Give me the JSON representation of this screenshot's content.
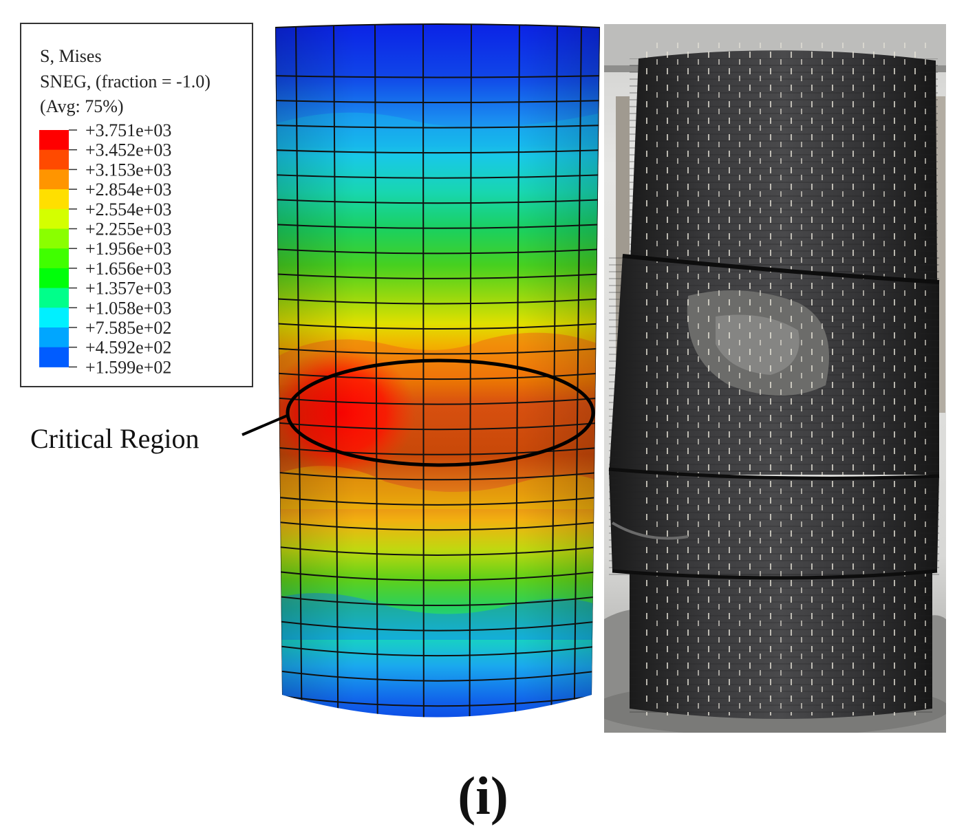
{
  "legend": {
    "title_lines": [
      "S, Mises",
      "SNEG, (fraction = -1.0)",
      "(Avg: 75%)"
    ],
    "levels": [
      {
        "label": "+3.751e+03",
        "color": "#ff0000"
      },
      {
        "label": "+3.452e+03",
        "color": "#ff4a00"
      },
      {
        "label": "+3.153e+03",
        "color": "#ff9500"
      },
      {
        "label": "+2.854e+03",
        "color": "#ffdf00"
      },
      {
        "label": "+2.554e+03",
        "color": "#d4ff00"
      },
      {
        "label": "+2.255e+03",
        "color": "#8aff00"
      },
      {
        "label": "+1.956e+03",
        "color": "#40ff00"
      },
      {
        "label": "+1.656e+03",
        "color": "#00ff0a"
      },
      {
        "label": "+1.357e+03",
        "color": "#00ff8a"
      },
      {
        "label": "+1.058e+03",
        "color": "#00f0ff"
      },
      {
        "label": "+7.585e+02",
        "color": "#00a6ff"
      },
      {
        "label": "+4.592e+02",
        "color": "#005cff"
      },
      {
        "label": "+1.599e+02",
        "color": "#0012ff"
      }
    ]
  },
  "callout": {
    "label": "Critical Region"
  },
  "panel_label": "(i)",
  "photo": {
    "description_icon": "wrapped-column-photo"
  }
}
